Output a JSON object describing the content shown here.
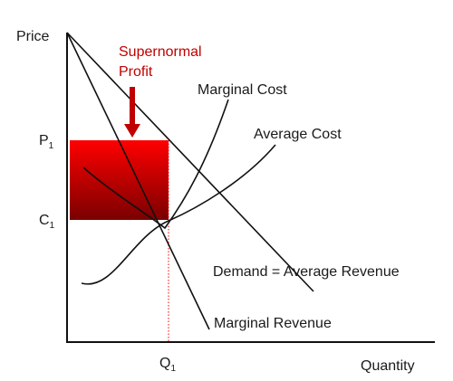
{
  "diagram": {
    "axes": {
      "y_label": "Price",
      "x_label": "Quantity"
    },
    "ticks": {
      "p1": {
        "base": "P",
        "sub": "1"
      },
      "c1": {
        "base": "C",
        "sub": "1"
      },
      "q1": {
        "base": "Q",
        "sub": "1"
      }
    },
    "annotation": {
      "line1": "Supernormal",
      "line2": "Profit"
    },
    "curves": {
      "marginal_cost": "Marginal Cost",
      "average_cost": "Average Cost",
      "demand": "Demand = Average Revenue",
      "marginal_revenue": "Marginal Revenue"
    },
    "colors": {
      "profit_top": "#ff0000",
      "profit_bottom": "#7a0000",
      "annotation": "#c00000",
      "arrow": "#c00000",
      "q1_dotted": "#ff0000",
      "lines": "#111111"
    }
  }
}
